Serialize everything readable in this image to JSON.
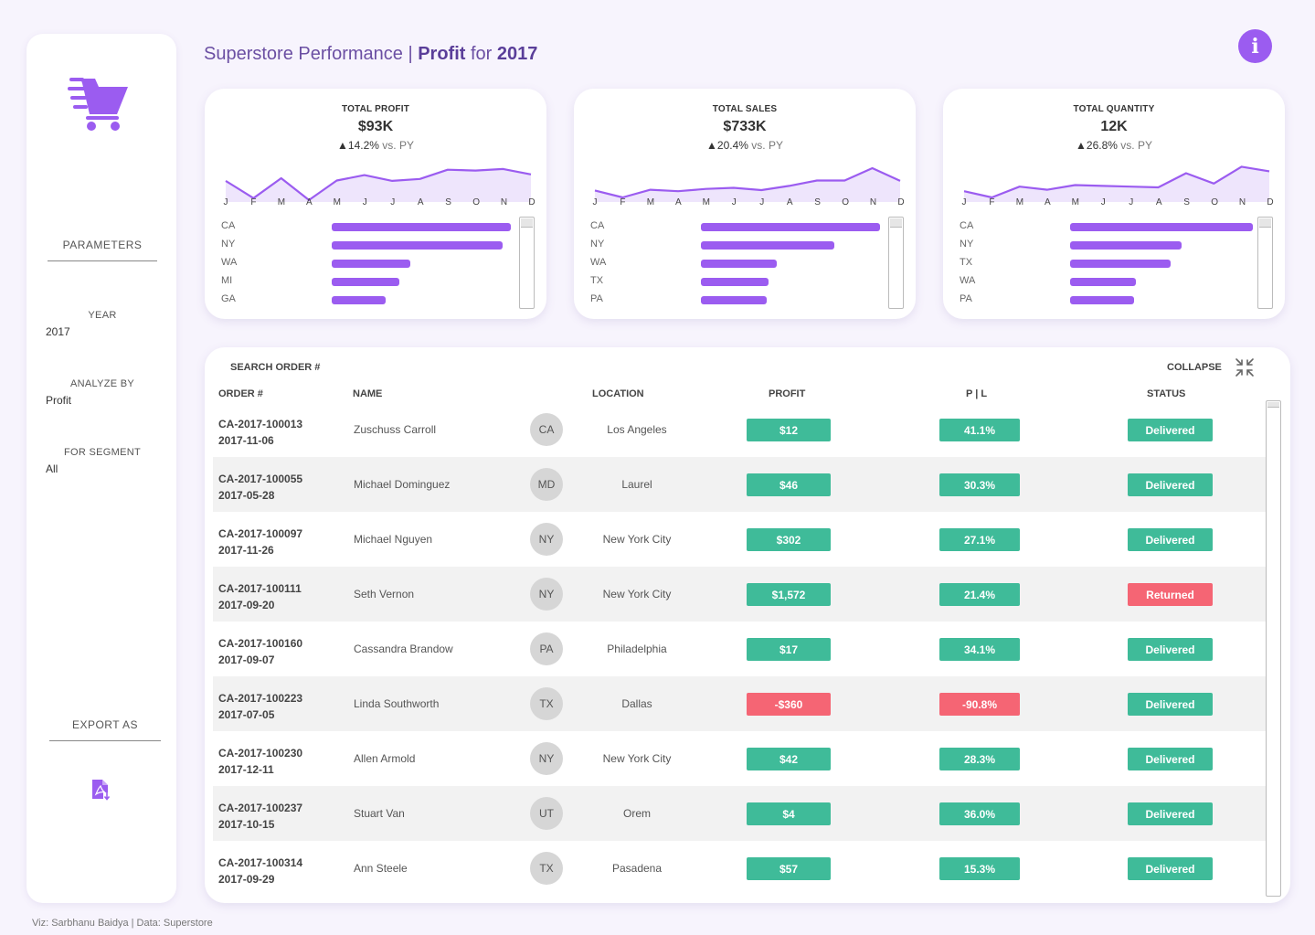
{
  "title": {
    "main": "Superstore Performance | ",
    "metric": "Profit",
    "for": " for ",
    "year": "2017"
  },
  "sidebar": {
    "parameters_title": "PARAMETERS",
    "year": {
      "label": "YEAR",
      "value": "2017"
    },
    "analyze_by": {
      "label": "ANALYZE BY",
      "value": "Profit"
    },
    "segment": {
      "label": "FOR SEGMENT",
      "value": "All"
    },
    "export_title": "EXPORT AS"
  },
  "months": [
    "J",
    "F",
    "M",
    "A",
    "M",
    "J",
    "J",
    "A",
    "S",
    "O",
    "N",
    "D"
  ],
  "kpis": [
    {
      "label": "TOTAL PROFIT",
      "value": "$93K",
      "change": "▲14.2%",
      "vs": "vs. PY",
      "spark": [
        0.55,
        0.1,
        0.62,
        0.05,
        0.56,
        0.7,
        0.55,
        0.6,
        0.84,
        0.82,
        0.86,
        0.72
      ],
      "states": [
        {
          "name": "CA",
          "pct": 0.87
        },
        {
          "name": "NY",
          "pct": 0.83
        },
        {
          "name": "WA",
          "pct": 0.38
        },
        {
          "name": "MI",
          "pct": 0.33
        },
        {
          "name": "GA",
          "pct": 0.26
        }
      ]
    },
    {
      "label": "TOTAL SALES",
      "value": "$733K",
      "change": "▲20.4%",
      "vs": "vs. PY",
      "spark": [
        0.3,
        0.12,
        0.32,
        0.28,
        0.34,
        0.37,
        0.31,
        0.42,
        0.56,
        0.56,
        0.88,
        0.55
      ],
      "states": [
        {
          "name": "CA",
          "pct": 0.87
        },
        {
          "name": "NY",
          "pct": 0.65
        },
        {
          "name": "WA",
          "pct": 0.37
        },
        {
          "name": "TX",
          "pct": 0.33
        },
        {
          "name": "PA",
          "pct": 0.32
        }
      ]
    },
    {
      "label": "TOTAL QUANTITY",
      "value": "12K",
      "change": "▲26.8%",
      "vs": "vs. PY",
      "spark": [
        0.28,
        0.12,
        0.4,
        0.32,
        0.44,
        0.42,
        0.4,
        0.38,
        0.75,
        0.48,
        0.92,
        0.8
      ],
      "states": [
        {
          "name": "CA",
          "pct": 0.89
        },
        {
          "name": "NY",
          "pct": 0.54
        },
        {
          "name": "TX",
          "pct": 0.49
        },
        {
          "name": "WA",
          "pct": 0.32
        },
        {
          "name": "PA",
          "pct": 0.31
        }
      ]
    }
  ],
  "table": {
    "search_label": "SEARCH ORDER #",
    "collapse_label": "COLLAPSE",
    "headers": {
      "order": "ORDER #",
      "name": "NAME",
      "location": "LOCATION",
      "profit": "PROFIT",
      "pl": "P | L",
      "status": "STATUS"
    },
    "rows": [
      {
        "order": "CA-2017-100013",
        "date": "2017-11-06",
        "name": "Zuschuss Carroll",
        "state": "CA",
        "location": "Los Angeles",
        "profit": "$12",
        "pl": "41.1%",
        "status": "Delivered",
        "profit_color": "green",
        "pl_color": "green",
        "status_color": "green"
      },
      {
        "order": "CA-2017-100055",
        "date": "2017-05-28",
        "name": "Michael Dominguez",
        "state": "MD",
        "location": "Laurel",
        "profit": "$46",
        "pl": "30.3%",
        "status": "Delivered",
        "profit_color": "green",
        "pl_color": "green",
        "status_color": "green"
      },
      {
        "order": "CA-2017-100097",
        "date": "2017-11-26",
        "name": "Michael Nguyen",
        "state": "NY",
        "location": "New York City",
        "profit": "$302",
        "pl": "27.1%",
        "status": "Delivered",
        "profit_color": "green",
        "pl_color": "green",
        "status_color": "green"
      },
      {
        "order": "CA-2017-100111",
        "date": "2017-09-20",
        "name": "Seth Vernon",
        "state": "NY",
        "location": "New York City",
        "profit": "$1,572",
        "pl": "21.4%",
        "status": "Returned",
        "profit_color": "green",
        "pl_color": "green",
        "status_color": "red"
      },
      {
        "order": "CA-2017-100160",
        "date": "2017-09-07",
        "name": "Cassandra Brandow",
        "state": "PA",
        "location": "Philadelphia",
        "profit": "$17",
        "pl": "34.1%",
        "status": "Delivered",
        "profit_color": "green",
        "pl_color": "green",
        "status_color": "green"
      },
      {
        "order": "CA-2017-100223",
        "date": "2017-07-05",
        "name": "Linda Southworth",
        "state": "TX",
        "location": "Dallas",
        "profit": "-$360",
        "pl": "-90.8%",
        "status": "Delivered",
        "profit_color": "red",
        "pl_color": "red",
        "status_color": "green"
      },
      {
        "order": "CA-2017-100230",
        "date": "2017-12-11",
        "name": "Allen Armold",
        "state": "NY",
        "location": "New York City",
        "profit": "$42",
        "pl": "28.3%",
        "status": "Delivered",
        "profit_color": "green",
        "pl_color": "green",
        "status_color": "green"
      },
      {
        "order": "CA-2017-100237",
        "date": "2017-10-15",
        "name": "Stuart Van",
        "state": "UT",
        "location": "Orem",
        "profit": "$4",
        "pl": "36.0%",
        "status": "Delivered",
        "profit_color": "green",
        "pl_color": "green",
        "status_color": "green"
      },
      {
        "order": "CA-2017-100314",
        "date": "2017-09-29",
        "name": "Ann Steele",
        "state": "TX",
        "location": "Pasadena",
        "profit": "$57",
        "pl": "15.3%",
        "status": "Delivered",
        "profit_color": "green",
        "pl_color": "green",
        "status_color": "green"
      }
    ]
  },
  "footer": "Viz: Sarbhanu Baidya | Data: Superstore",
  "colors": {
    "accent": "#9b5cf0",
    "green": "#3fbb99",
    "red": "#f56574",
    "title": "#6b4fa3"
  }
}
